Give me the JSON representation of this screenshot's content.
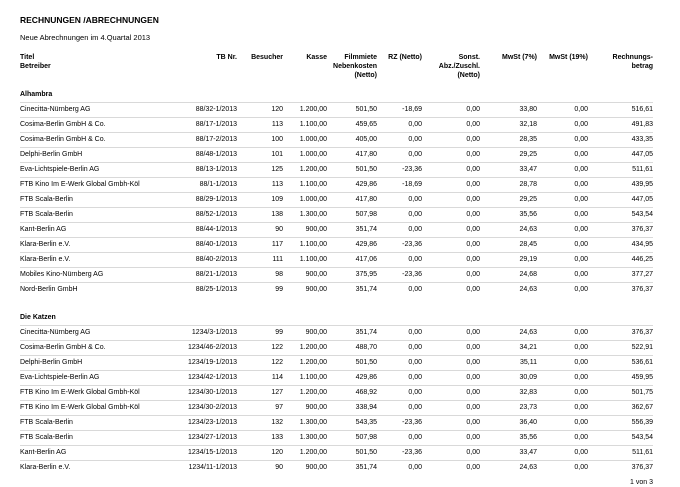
{
  "report": {
    "title": "RECHNUNGEN /ABRECHNUNGEN",
    "subtitle": "Neue Abrechnungen im 4.Quartal 2013",
    "page_label": "1 von 3",
    "colors": {
      "text": "#000000",
      "row_separator": "#d9d9d9",
      "background": "#ffffff"
    }
  },
  "table": {
    "columns": [
      {
        "id": "betreiber",
        "lines": [
          "Titel",
          "Betreiber"
        ]
      },
      {
        "id": "tb-nr",
        "lines": [
          "TB Nr."
        ]
      },
      {
        "id": "besucher",
        "lines": [
          "Besucher"
        ]
      },
      {
        "id": "kasse",
        "lines": [
          "Kasse"
        ]
      },
      {
        "id": "filmmiete",
        "lines": [
          "Filmmiete",
          "Nebenkosten",
          "(Netto)"
        ]
      },
      {
        "id": "rz",
        "lines": [
          "RZ (Netto)"
        ]
      },
      {
        "id": "sonst",
        "lines": [
          "Sonst.",
          "Abz./Zuschl.",
          "(Netto)"
        ]
      },
      {
        "id": "mwst7",
        "lines": [
          "MwSt (7%)"
        ]
      },
      {
        "id": "mwst19",
        "lines": [
          "MwSt (19%)"
        ]
      },
      {
        "id": "betrag",
        "lines": [
          "Rechnungs-",
          "betrag"
        ]
      }
    ],
    "groups": [
      {
        "name": "Alhambra",
        "rows": [
          [
            "Cinecitta-Nürnberg AG",
            "88/32-1/2013",
            "120",
            "1.200,00",
            "501,50",
            "-18,69",
            "0,00",
            "33,80",
            "0,00",
            "516,61"
          ],
          [
            "Cosima-Berlin GmbH & Co.",
            "88/17-1/2013",
            "113",
            "1.100,00",
            "459,65",
            "0,00",
            "0,00",
            "32,18",
            "0,00",
            "491,83"
          ],
          [
            "Cosima-Berlin GmbH & Co.",
            "88/17-2/2013",
            "100",
            "1.000,00",
            "405,00",
            "0,00",
            "0,00",
            "28,35",
            "0,00",
            "433,35"
          ],
          [
            "Delphi-Berlin GmbH",
            "88/48-1/2013",
            "101",
            "1.000,00",
            "417,80",
            "0,00",
            "0,00",
            "29,25",
            "0,00",
            "447,05"
          ],
          [
            "Eva-Lichtspiele-Berlin AG",
            "88/13-1/2013",
            "125",
            "1.200,00",
            "501,50",
            "-23,36",
            "0,00",
            "33,47",
            "0,00",
            "511,61"
          ],
          [
            "FTB Kino Im E-Werk Global Gmbh-Köl",
            "88/1-1/2013",
            "113",
            "1.100,00",
            "429,86",
            "-18,69",
            "0,00",
            "28,78",
            "0,00",
            "439,95"
          ],
          [
            "FTB Scala-Berlin",
            "88/29-1/2013",
            "109",
            "1.000,00",
            "417,80",
            "0,00",
            "0,00",
            "29,25",
            "0,00",
            "447,05"
          ],
          [
            "FTB Scala-Berlin",
            "88/52-1/2013",
            "138",
            "1.300,00",
            "507,98",
            "0,00",
            "0,00",
            "35,56",
            "0,00",
            "543,54"
          ],
          [
            "Kant-Berlin AG",
            "88/44-1/2013",
            "90",
            "900,00",
            "351,74",
            "0,00",
            "0,00",
            "24,63",
            "0,00",
            "376,37"
          ],
          [
            "Klara-Berlin e.V.",
            "88/40-1/2013",
            "117",
            "1.100,00",
            "429,86",
            "-23,36",
            "0,00",
            "28,45",
            "0,00",
            "434,95"
          ],
          [
            "Klara-Berlin e.V.",
            "88/40-2/2013",
            "111",
            "1.100,00",
            "417,06",
            "0,00",
            "0,00",
            "29,19",
            "0,00",
            "446,25"
          ],
          [
            "Mobiles Kino-Nürnberg AG",
            "88/21-1/2013",
            "98",
            "900,00",
            "375,95",
            "-23,36",
            "0,00",
            "24,68",
            "0,00",
            "377,27"
          ],
          [
            "Nord-Berlin GmbH",
            "88/25-1/2013",
            "99",
            "900,00",
            "351,74",
            "0,00",
            "0,00",
            "24,63",
            "0,00",
            "376,37"
          ]
        ]
      },
      {
        "name": "Die Katzen",
        "rows": [
          [
            "Cinecitta-Nürnberg AG",
            "1234/3-1/2013",
            "99",
            "900,00",
            "351,74",
            "0,00",
            "0,00",
            "24,63",
            "0,00",
            "376,37"
          ],
          [
            "Cosima-Berlin GmbH & Co.",
            "1234/46-2/2013",
            "122",
            "1.200,00",
            "488,70",
            "0,00",
            "0,00",
            "34,21",
            "0,00",
            "522,91"
          ],
          [
            "Delphi-Berlin GmbH",
            "1234/19-1/2013",
            "122",
            "1.200,00",
            "501,50",
            "0,00",
            "0,00",
            "35,11",
            "0,00",
            "536,61"
          ],
          [
            "Eva-Lichtspiele-Berlin AG",
            "1234/42-1/2013",
            "114",
            "1.100,00",
            "429,86",
            "0,00",
            "0,00",
            "30,09",
            "0,00",
            "459,95"
          ],
          [
            "FTB Kino Im E-Werk Global Gmbh-Köl",
            "1234/30-1/2013",
            "127",
            "1.200,00",
            "468,92",
            "0,00",
            "0,00",
            "32,83",
            "0,00",
            "501,75"
          ],
          [
            "FTB Kino Im E-Werk Global Gmbh-Köl",
            "1234/30-2/2013",
            "97",
            "900,00",
            "338,94",
            "0,00",
            "0,00",
            "23,73",
            "0,00",
            "362,67"
          ],
          [
            "FTB Scala-Berlin",
            "1234/23-1/2013",
            "132",
            "1.300,00",
            "543,35",
            "-23,36",
            "0,00",
            "36,40",
            "0,00",
            "556,39"
          ],
          [
            "FTB Scala-Berlin",
            "1234/27-1/2013",
            "133",
            "1.300,00",
            "507,98",
            "0,00",
            "0,00",
            "35,56",
            "0,00",
            "543,54"
          ],
          [
            "Kant-Berlin AG",
            "1234/15-1/2013",
            "120",
            "1.200,00",
            "501,50",
            "-23,36",
            "0,00",
            "33,47",
            "0,00",
            "511,61"
          ],
          [
            "Klara-Berlin e.V.",
            "1234/11-1/2013",
            "90",
            "900,00",
            "351,74",
            "0,00",
            "0,00",
            "24,63",
            "0,00",
            "376,37"
          ]
        ]
      }
    ]
  }
}
